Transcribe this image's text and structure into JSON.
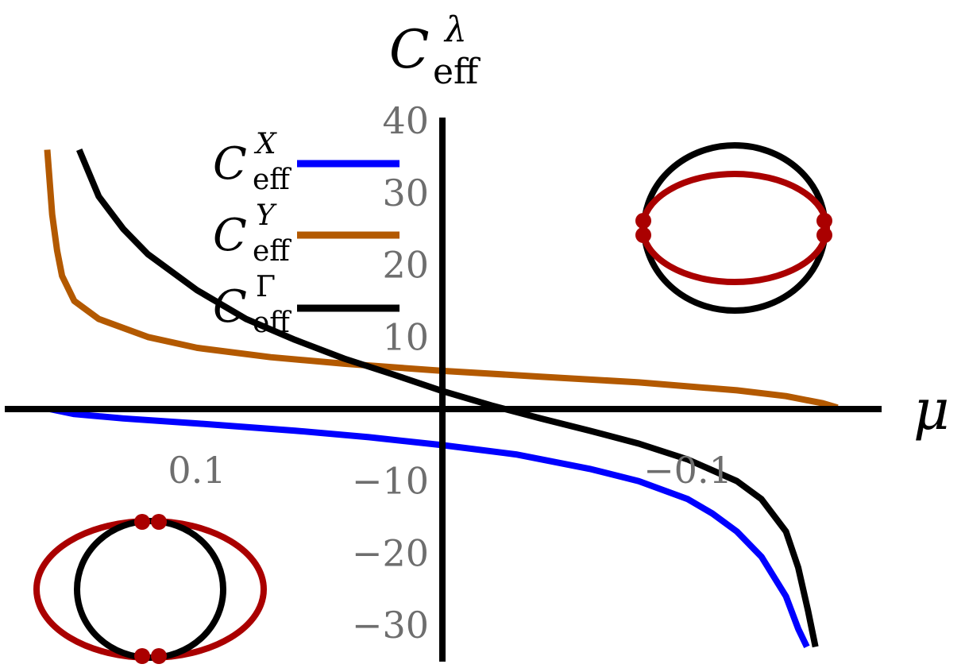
{
  "chart_data": {
    "type": "line",
    "ylabel": "C",
    "ylabel_sub": "eff",
    "ylabel_sup": "λ",
    "xlabel": "μ",
    "x_direction": "reversed",
    "xlim": [
      0.16,
      -0.16
    ],
    "ylim": [
      -33,
      40
    ],
    "x_ticks": [
      {
        "value": 0.1,
        "label": "0.1"
      },
      {
        "value": -0.1,
        "label": "−0.1"
      }
    ],
    "y_ticks": [
      {
        "value": 40,
        "label": "40"
      },
      {
        "value": 30,
        "label": "30"
      },
      {
        "value": 20,
        "label": "20"
      },
      {
        "value": 10,
        "label": "10"
      },
      {
        "value": -10,
        "label": "−10"
      },
      {
        "value": -20,
        "label": "−20"
      },
      {
        "value": -30,
        "label": "−30"
      }
    ],
    "grid": false,
    "legend": "top-left",
    "series": [
      {
        "name": "X",
        "legend_base": "C",
        "legend_sub": "eff",
        "legend_sup": "X",
        "color": "#0000ff",
        "points": [
          [
            0.16,
            0.0
          ],
          [
            0.15,
            -0.7
          ],
          [
            0.13,
            -1.3
          ],
          [
            0.1,
            -2.0
          ],
          [
            0.06,
            -3.0
          ],
          [
            0.03,
            -3.9
          ],
          [
            0.0,
            -5.0
          ],
          [
            -0.03,
            -6.3
          ],
          [
            -0.06,
            -8.3
          ],
          [
            -0.08,
            -10.0
          ],
          [
            -0.1,
            -12.5
          ],
          [
            -0.11,
            -14.5
          ],
          [
            -0.12,
            -17.0
          ],
          [
            -0.13,
            -20.5
          ],
          [
            -0.14,
            -26.0
          ],
          [
            -0.145,
            -30.5
          ],
          [
            -0.1485,
            -33.0
          ]
        ]
      },
      {
        "name": "Y",
        "legend_base": "C",
        "legend_sub": "eff",
        "legend_sup": "Y",
        "color": "#b35900",
        "points": [
          [
            0.161,
            36.0
          ],
          [
            0.159,
            27.0
          ],
          [
            0.157,
            22.0
          ],
          [
            0.155,
            18.5
          ],
          [
            0.15,
            15.0
          ],
          [
            0.14,
            12.5
          ],
          [
            0.12,
            10.0
          ],
          [
            0.1,
            8.5
          ],
          [
            0.07,
            7.2
          ],
          [
            0.04,
            6.3
          ],
          [
            0.0,
            5.3
          ],
          [
            -0.04,
            4.5
          ],
          [
            -0.08,
            3.7
          ],
          [
            -0.12,
            2.6
          ],
          [
            -0.14,
            1.8
          ],
          [
            -0.155,
            0.8
          ],
          [
            -0.161,
            0.2
          ]
        ]
      },
      {
        "name": "Γ",
        "legend_base": "C",
        "legend_sub": "eff",
        "legend_sup": "Γ",
        "color": "#000000",
        "points": [
          [
            0.148,
            36.0
          ],
          [
            0.14,
            29.5
          ],
          [
            0.13,
            25.0
          ],
          [
            0.12,
            21.5
          ],
          [
            0.1,
            16.5
          ],
          [
            0.08,
            12.5
          ],
          [
            0.06,
            9.6
          ],
          [
            0.04,
            7.0
          ],
          [
            0.02,
            4.8
          ],
          [
            0.0,
            2.5
          ],
          [
            -0.02,
            0.5
          ],
          [
            -0.04,
            -1.3
          ],
          [
            -0.06,
            -3.0
          ],
          [
            -0.08,
            -4.8
          ],
          [
            -0.1,
            -7.0
          ],
          [
            -0.12,
            -10.0
          ],
          [
            -0.13,
            -12.5
          ],
          [
            -0.14,
            -17.0
          ],
          [
            -0.145,
            -22.0
          ],
          [
            -0.149,
            -28.0
          ],
          [
            -0.152,
            -33.0
          ]
        ]
      }
    ],
    "insets": [
      {
        "position": "top-right",
        "outer_color": "#000000",
        "inner_color": "#aa0000",
        "shape": "vertical-circle-horizontal-ellipse",
        "marker_points": "left-right"
      },
      {
        "position": "bottom-left",
        "outer_color": "#aa0000",
        "inner_color": "#000000",
        "shape": "wide-ellipse-inner-circle",
        "marker_points": "top-bottom"
      }
    ]
  }
}
